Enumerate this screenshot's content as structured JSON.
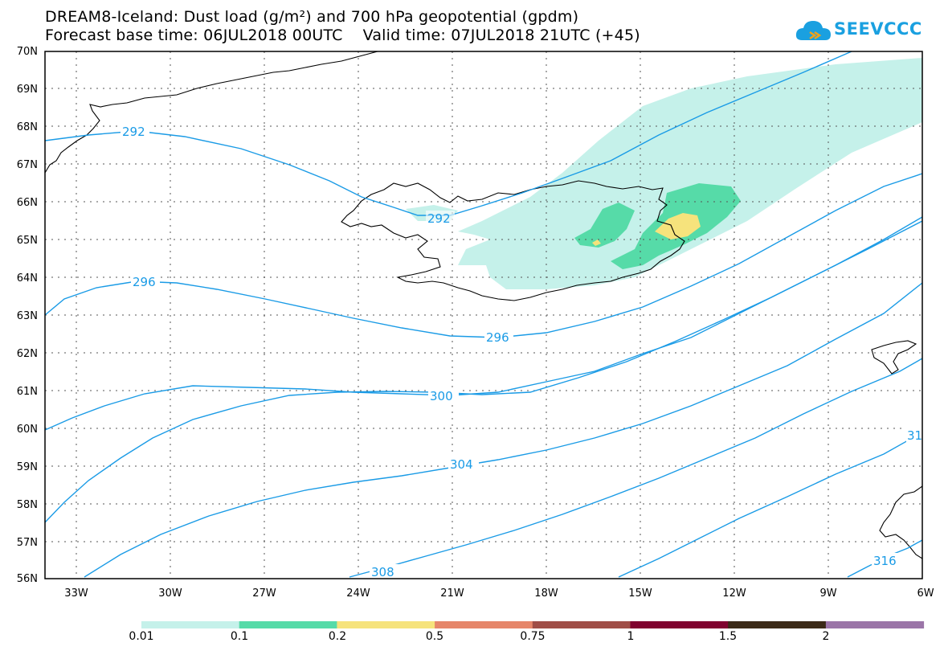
{
  "title": {
    "line1": "DREAM8-Iceland: Dust load (g/m²) and 700 hPa geopotential (gpdm)",
    "line2": "Forecast base time: 06JUL2018 00UTC    Valid time: 07JUL2018 21UTC (+45)"
  },
  "logo": {
    "text": "SEEVCCC",
    "icon": "cloud-icon",
    "color": "#1aa0e0"
  },
  "map": {
    "lat_labels": [
      "70N",
      "69N",
      "68N",
      "67N",
      "66N",
      "65N",
      "64N",
      "63N",
      "62N",
      "61N",
      "60N",
      "59N",
      "58N",
      "57N",
      "56N"
    ],
    "lon_labels": [
      "33W",
      "30W",
      "27W",
      "24W",
      "21W",
      "18W",
      "15W",
      "12W",
      "9W",
      "6W"
    ],
    "contour_labels": [
      "292",
      "292",
      "296",
      "296",
      "300",
      "304",
      "308",
      "31",
      "316"
    ],
    "contour_color": "#1a9be6"
  },
  "colorbar": {
    "labels": [
      "0.01",
      "0.1",
      "0.2",
      "0.5",
      "0.75",
      "1",
      "1.5",
      "2"
    ],
    "colors": [
      "#c5f1ea",
      "#56dba8",
      "#f6e37c",
      "#e6866a",
      "#a04e47",
      "#80022f",
      "#3b2a17",
      "#9b75a8"
    ]
  }
}
